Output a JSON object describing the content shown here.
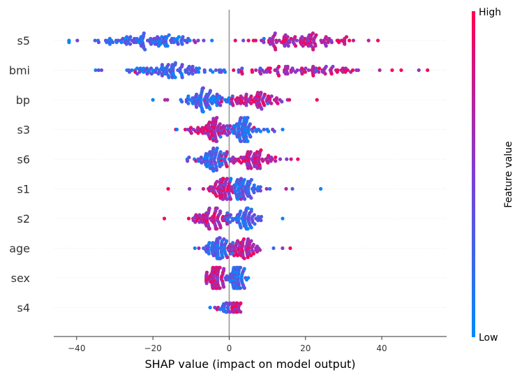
{
  "chart_data": {
    "type": "scatter",
    "subtype": "shap-beeswarm",
    "xlabel": "SHAP value (impact on model output)",
    "xlim": [
      -46,
      57
    ],
    "x_ticks": [
      -40,
      -20,
      0,
      20,
      40
    ],
    "x_tick_labels": [
      "−40",
      "−20",
      "0",
      "20",
      "40"
    ],
    "features": [
      {
        "name": "s5",
        "min": -42,
        "max": 39,
        "spread": 10,
        "dense_low": [
          -35,
          -8
        ],
        "dense_high": [
          7,
          33
        ],
        "low_is_negative": true,
        "points": 220
      },
      {
        "name": "bmi",
        "min": -35,
        "max": 52,
        "spread": 9,
        "dense_low": [
          -28,
          -2
        ],
        "dense_high": [
          4,
          40
        ],
        "low_is_negative": true,
        "points": 200
      },
      {
        "name": "bp",
        "min": -20,
        "max": 23,
        "spread": 8,
        "dense_low": [
          -12,
          0
        ],
        "dense_high": [
          0,
          14
        ],
        "low_is_negative": true,
        "points": 170
      },
      {
        "name": "s3",
        "min": -14,
        "max": 14,
        "spread": 8,
        "dense_low": [
          -10,
          0
        ],
        "dense_high": [
          0,
          7
        ],
        "low_is_negative": false,
        "points": 170
      },
      {
        "name": "s6",
        "min": -11,
        "max": 18,
        "spread": 8,
        "dense_low": [
          -8,
          0
        ],
        "dense_high": [
          0,
          12
        ],
        "low_is_negative": true,
        "points": 160
      },
      {
        "name": "s1",
        "min": -16,
        "max": 24,
        "spread": 7,
        "dense_low": [
          -5,
          1
        ],
        "dense_high": [
          0,
          8
        ],
        "low_is_negative": false,
        "points": 150
      },
      {
        "name": "s2",
        "min": -17,
        "max": 14,
        "spread": 7,
        "dense_low": [
          -10,
          0
        ],
        "dense_high": [
          0,
          8
        ],
        "low_is_negative": false,
        "points": 150
      },
      {
        "name": "age",
        "min": -9,
        "max": 16,
        "spread": 7,
        "dense_low": [
          -6,
          0
        ],
        "dense_high": [
          0,
          7
        ],
        "low_is_negative": true,
        "points": 150
      },
      {
        "name": "sex",
        "min": -6,
        "max": 5,
        "spread": 7,
        "dense_low": [
          -6,
          -1
        ],
        "dense_high": [
          0,
          4
        ],
        "low_is_negative": false,
        "points": 150
      },
      {
        "name": "s4",
        "min": -5,
        "max": 3,
        "spread": 3,
        "dense_low": [
          -2,
          0
        ],
        "dense_high": [
          0,
          3
        ],
        "low_is_negative": true,
        "points": 60
      }
    ],
    "colorbar": {
      "title": "Feature value",
      "high_label": "High",
      "low_label": "Low",
      "low_color": "#008bfb",
      "mid_color": "#7e3fd6",
      "high_color": "#ff0052"
    }
  }
}
